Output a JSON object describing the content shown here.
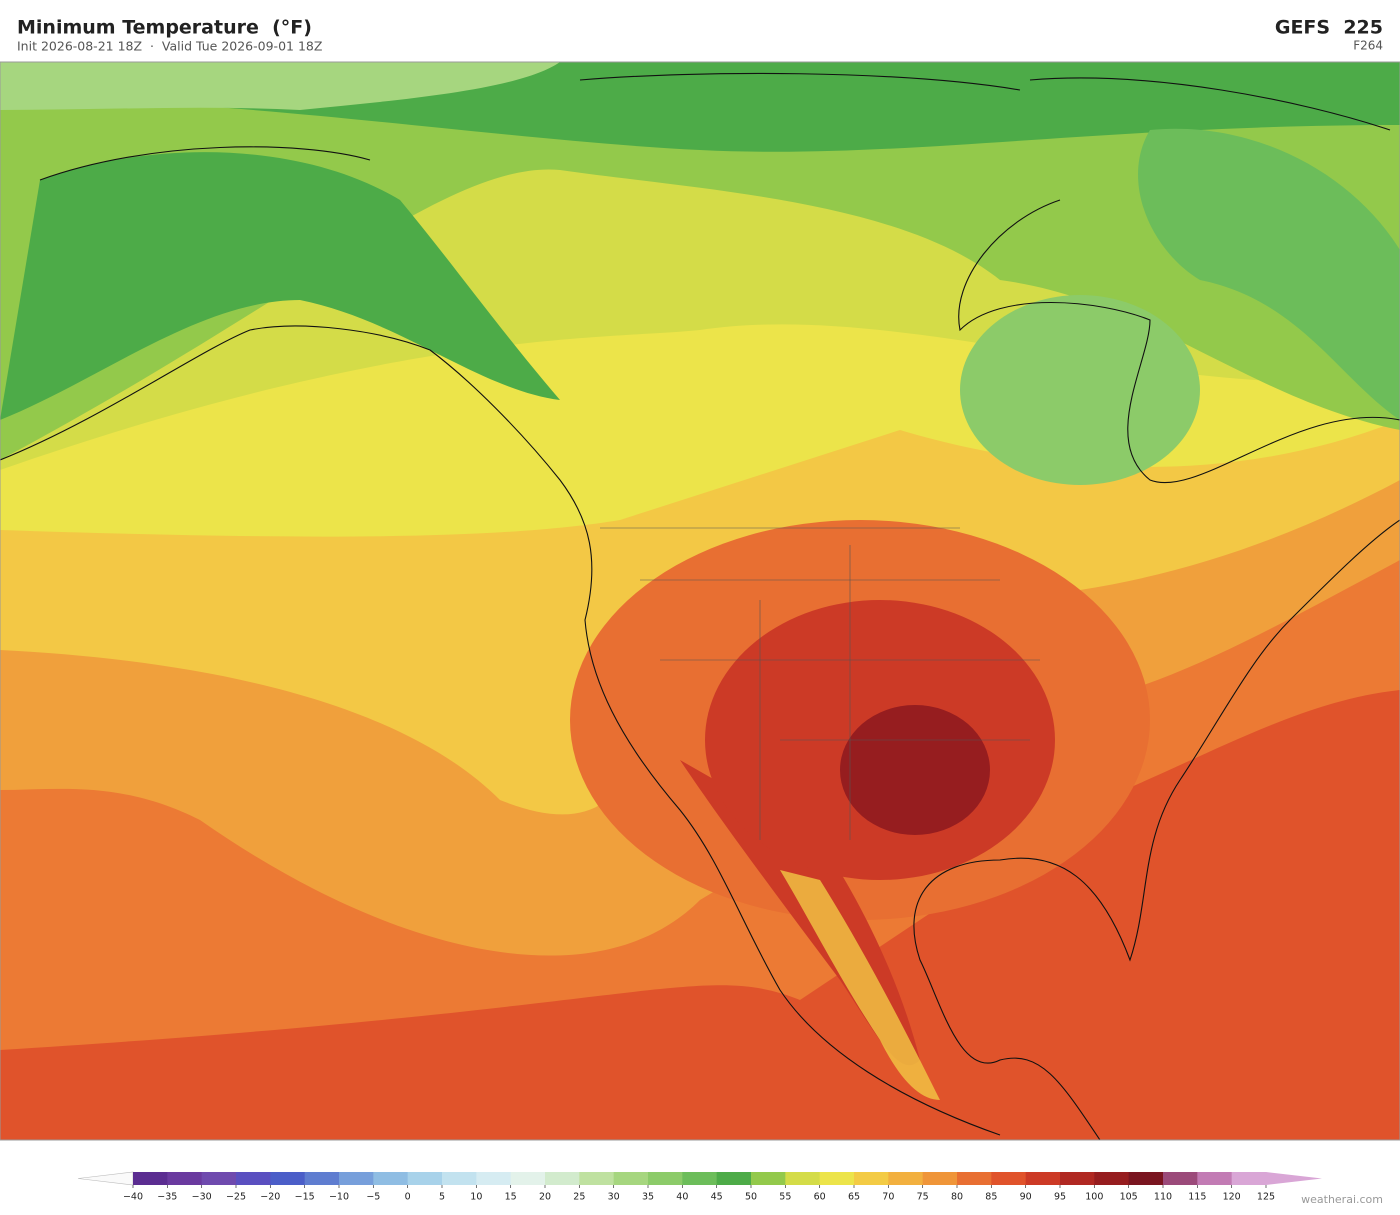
{
  "header": {
    "title": "Minimum Temperature  (°F)",
    "subtitle": "Init 2026-08-21 18Z  ·  Valid Tue 2026-09-01 18Z",
    "model": "GEFS  225",
    "forecast_hour": "F264"
  },
  "legend": {
    "ticks": [
      {
        "value": -40,
        "label": "−40"
      },
      {
        "value": -35,
        "label": "−35"
      },
      {
        "value": -30,
        "label": "−30"
      },
      {
        "value": -25,
        "label": "−25"
      },
      {
        "value": -20,
        "label": "−20"
      },
      {
        "value": -15,
        "label": "−15"
      },
      {
        "value": -10,
        "label": "−10"
      },
      {
        "value": -5,
        "label": "−5"
      },
      0,
      5,
      10,
      15,
      20,
      25,
      30,
      35,
      40,
      45,
      50,
      55,
      60,
      65,
      70,
      75,
      80,
      85,
      90,
      95,
      100,
      105,
      110,
      115,
      120,
      125
    ],
    "colors": [
      "#5b2d91",
      "#6a3a9f",
      "#6f4aae",
      "#5a4fc0",
      "#4b5ec8",
      "#5f7dd0",
      "#779fdb",
      "#8fbde3",
      "#a8d2ea",
      "#c2e2ef",
      "#d6ecf2",
      "#e3f2ea",
      "#d2ebcd",
      "#bfe1a0",
      "#a6d67f",
      "#8ccb69",
      "#6cbd5a",
      "#4dab48",
      "#93c94b",
      "#d4dc48",
      "#ece44a",
      "#f3cb45",
      "#f2b03f",
      "#ef9539",
      "#e86f32",
      "#e0532b",
      "#cc3a26",
      "#b02822",
      "#961d1f",
      "#7a1520",
      "#9b4a7a",
      "#c27bb4",
      "#d9a6d6"
    ]
  },
  "footer": {
    "watermark": "weatherai.com"
  }
}
